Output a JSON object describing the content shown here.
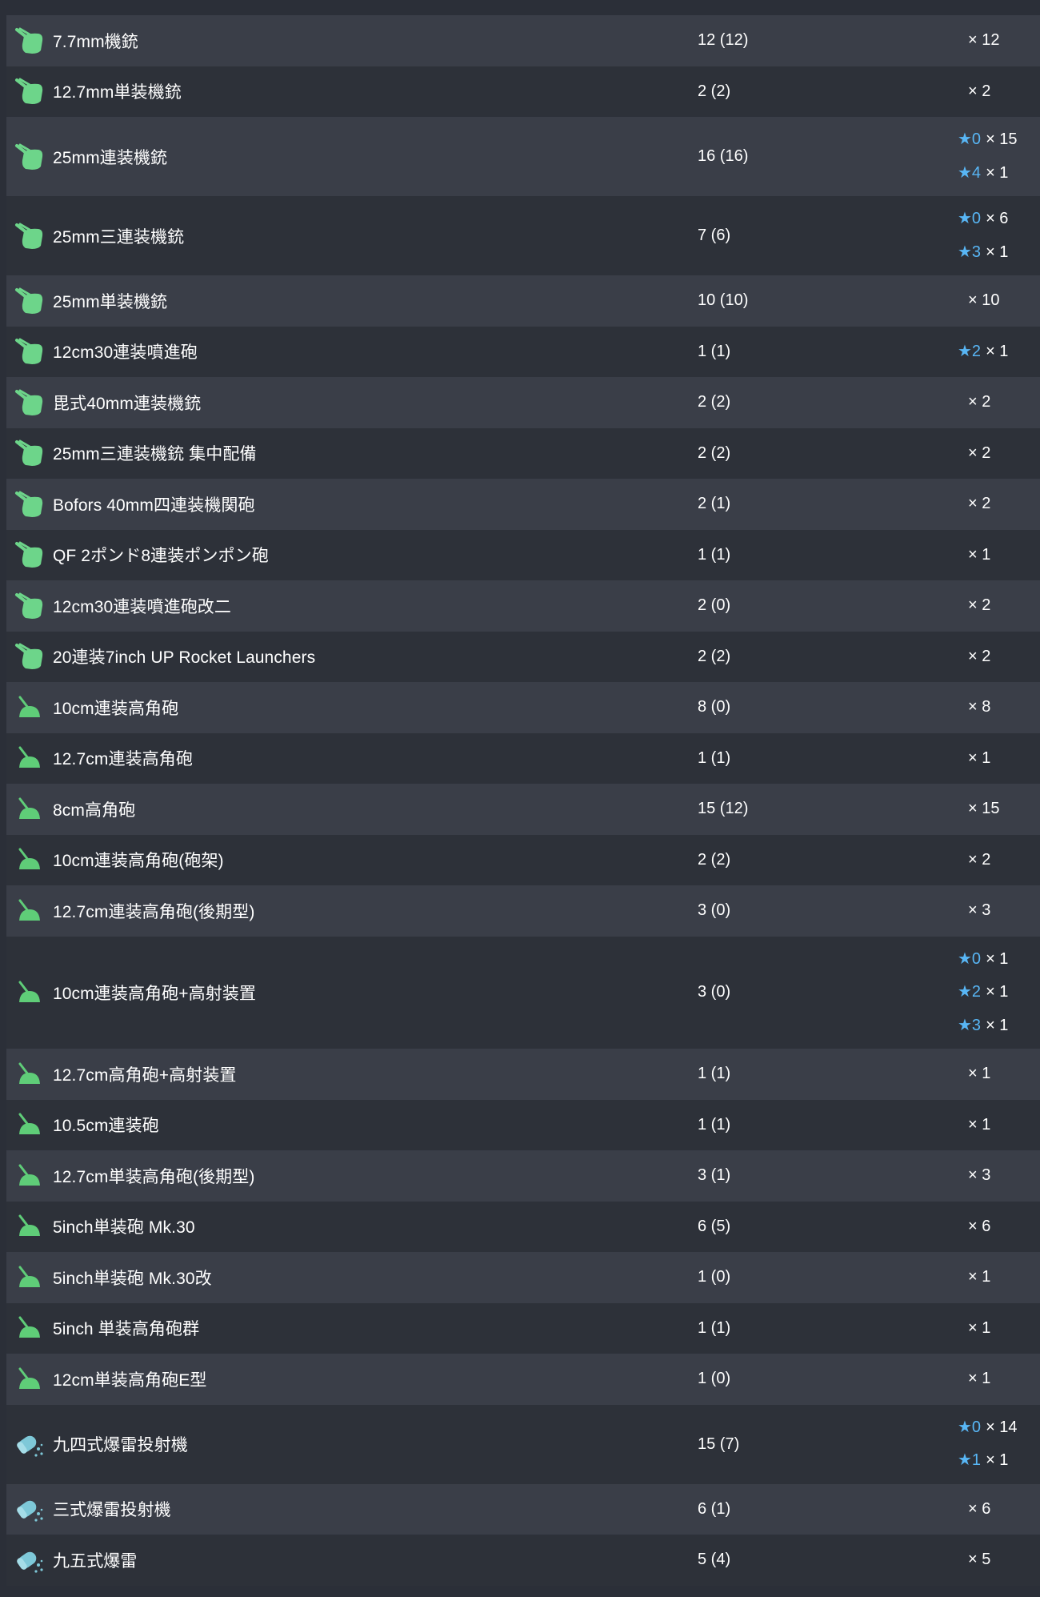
{
  "colors": {
    "background": "#2b2f38",
    "row_odd": "#3a3e48",
    "row_even": "#2d3139",
    "star": "#58b6f5",
    "aa_gun_icon": "#6dd58a",
    "ha_gun_icon": "#5fcd78",
    "dc_icon": "#7ec8d8"
  },
  "rows": [
    {
      "icon": "aa-gun-icon",
      "name": "7.7mm機銃",
      "count": "12 (12)",
      "stars": [
        {
          "level": "",
          "qty": "× 12"
        }
      ]
    },
    {
      "icon": "aa-gun-icon",
      "name": "12.7mm単装機銃",
      "count": "2 (2)",
      "stars": [
        {
          "level": "",
          "qty": "× 2"
        }
      ]
    },
    {
      "icon": "aa-gun-icon",
      "name": "25mm連装機銃",
      "count": "16 (16)",
      "stars": [
        {
          "level": "★0",
          "qty": "× 15"
        },
        {
          "level": "★4",
          "qty": "× 1"
        }
      ]
    },
    {
      "icon": "aa-gun-icon",
      "name": "25mm三連装機銃",
      "count": "7 (6)",
      "stars": [
        {
          "level": "★0",
          "qty": "× 6"
        },
        {
          "level": "★3",
          "qty": "× 1"
        }
      ]
    },
    {
      "icon": "aa-gun-icon",
      "name": "25mm単装機銃",
      "count": "10 (10)",
      "stars": [
        {
          "level": "",
          "qty": "× 10"
        }
      ]
    },
    {
      "icon": "aa-gun-icon",
      "name": "12cm30連装噴進砲",
      "count": "1 (1)",
      "stars": [
        {
          "level": "★2",
          "qty": "× 1"
        }
      ]
    },
    {
      "icon": "aa-gun-icon",
      "name": "毘式40mm連装機銃",
      "count": "2 (2)",
      "stars": [
        {
          "level": "",
          "qty": "× 2"
        }
      ]
    },
    {
      "icon": "aa-gun-icon",
      "name": "25mm三連装機銃 集中配備",
      "count": "2 (2)",
      "stars": [
        {
          "level": "",
          "qty": "× 2"
        }
      ]
    },
    {
      "icon": "aa-gun-icon",
      "name": "Bofors 40mm四連装機関砲",
      "count": "2 (1)",
      "stars": [
        {
          "level": "",
          "qty": "× 2"
        }
      ]
    },
    {
      "icon": "aa-gun-icon",
      "name": "QF 2ポンド8連装ポンポン砲",
      "count": "1 (1)",
      "stars": [
        {
          "level": "",
          "qty": "× 1"
        }
      ]
    },
    {
      "icon": "aa-gun-icon",
      "name": "12cm30連装噴進砲改二",
      "count": "2 (0)",
      "stars": [
        {
          "level": "",
          "qty": "× 2"
        }
      ]
    },
    {
      "icon": "aa-gun-icon",
      "name": "20連装7inch UP Rocket Launchers",
      "count": "2 (2)",
      "stars": [
        {
          "level": "",
          "qty": "× 2"
        }
      ]
    },
    {
      "icon": "ha-gun-icon",
      "name": "10cm連装高角砲",
      "count": "8 (0)",
      "stars": [
        {
          "level": "",
          "qty": "× 8"
        }
      ]
    },
    {
      "icon": "ha-gun-icon",
      "name": "12.7cm連装高角砲",
      "count": "1 (1)",
      "stars": [
        {
          "level": "",
          "qty": "× 1"
        }
      ]
    },
    {
      "icon": "ha-gun-icon",
      "name": "8cm高角砲",
      "count": "15 (12)",
      "stars": [
        {
          "level": "",
          "qty": "× 15"
        }
      ]
    },
    {
      "icon": "ha-gun-icon",
      "name": "10cm連装高角砲(砲架)",
      "count": "2 (2)",
      "stars": [
        {
          "level": "",
          "qty": "× 2"
        }
      ]
    },
    {
      "icon": "ha-gun-icon",
      "name": "12.7cm連装高角砲(後期型)",
      "count": "3 (0)",
      "stars": [
        {
          "level": "",
          "qty": "× 3"
        }
      ]
    },
    {
      "icon": "ha-gun-icon",
      "name": "10cm連装高角砲+高射装置",
      "count": "3 (0)",
      "stars": [
        {
          "level": "★0",
          "qty": "× 1"
        },
        {
          "level": "★2",
          "qty": "× 1"
        },
        {
          "level": "★3",
          "qty": "× 1"
        }
      ]
    },
    {
      "icon": "ha-gun-icon",
      "name": "12.7cm高角砲+高射装置",
      "count": "1 (1)",
      "stars": [
        {
          "level": "",
          "qty": "× 1"
        }
      ]
    },
    {
      "icon": "ha-gun-icon",
      "name": "10.5cm連装砲",
      "count": "1 (1)",
      "stars": [
        {
          "level": "",
          "qty": "× 1"
        }
      ]
    },
    {
      "icon": "ha-gun-icon",
      "name": "12.7cm単装高角砲(後期型)",
      "count": "3 (1)",
      "stars": [
        {
          "level": "",
          "qty": "× 3"
        }
      ]
    },
    {
      "icon": "ha-gun-icon",
      "name": "5inch単装砲 Mk.30",
      "count": "6 (5)",
      "stars": [
        {
          "level": "",
          "qty": "× 6"
        }
      ]
    },
    {
      "icon": "ha-gun-icon",
      "name": "5inch単装砲 Mk.30改",
      "count": "1 (0)",
      "stars": [
        {
          "level": "",
          "qty": "× 1"
        }
      ]
    },
    {
      "icon": "ha-gun-icon",
      "name": "5inch 単装高角砲群",
      "count": "1 (1)",
      "stars": [
        {
          "level": "",
          "qty": "× 1"
        }
      ]
    },
    {
      "icon": "ha-gun-icon",
      "name": "12cm単装高角砲E型",
      "count": "1 (0)",
      "stars": [
        {
          "level": "",
          "qty": "× 1"
        }
      ]
    },
    {
      "icon": "depth-charge-icon",
      "name": "九四式爆雷投射機",
      "count": "15 (7)",
      "stars": [
        {
          "level": "★0",
          "qty": "× 14"
        },
        {
          "level": "★1",
          "qty": "× 1"
        }
      ]
    },
    {
      "icon": "depth-charge-icon",
      "name": "三式爆雷投射機",
      "count": "6 (1)",
      "stars": [
        {
          "level": "",
          "qty": "× 6"
        }
      ]
    },
    {
      "icon": "depth-charge-icon",
      "name": "九五式爆雷",
      "count": "5 (4)",
      "stars": [
        {
          "level": "",
          "qty": "× 5"
        }
      ]
    }
  ]
}
